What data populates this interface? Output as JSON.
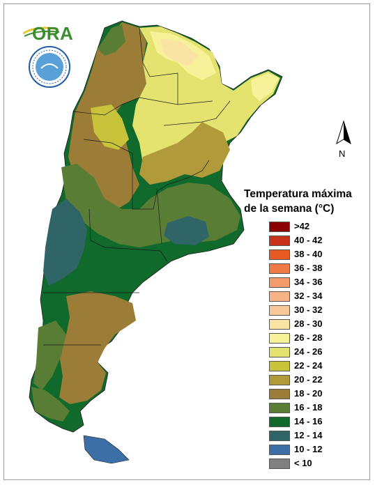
{
  "legend": {
    "title_line1": "Temperatura máxima",
    "title_line2": "de la semana (°C)",
    "items": [
      {
        "label": ">42",
        "color": "#8b0000"
      },
      {
        "label": "40 - 42",
        "color": "#c7321b"
      },
      {
        "label": "38 - 40",
        "color": "#e85a24"
      },
      {
        "label": "36 - 38",
        "color": "#f07a45"
      },
      {
        "label": "34 - 36",
        "color": "#f49b6a"
      },
      {
        "label": "32 - 34",
        "color": "#f7b386"
      },
      {
        "label": "30 - 32",
        "color": "#f8c898"
      },
      {
        "label": "28 - 30",
        "color": "#f9e4a4"
      },
      {
        "label": "26 - 28",
        "color": "#f7f29a"
      },
      {
        "label": "24 - 26",
        "color": "#e4e36f"
      },
      {
        "label": "22 - 24",
        "color": "#c9c33b"
      },
      {
        "label": "20 - 22",
        "color": "#b19a3a"
      },
      {
        "label": "18 - 20",
        "color": "#9c7d37"
      },
      {
        "label": "16 - 18",
        "color": "#5a7d36"
      },
      {
        "label": "14 - 16",
        "color": "#0f6a2c"
      },
      {
        "label": "12 - 14",
        "color": "#2f6566"
      },
      {
        "label": "10 - 12",
        "color": "#3d6fa7"
      },
      {
        "label": "< 10",
        "color": "#808080"
      }
    ]
  },
  "compass": {
    "label": "N"
  },
  "logos": {
    "ora": "ORA"
  }
}
